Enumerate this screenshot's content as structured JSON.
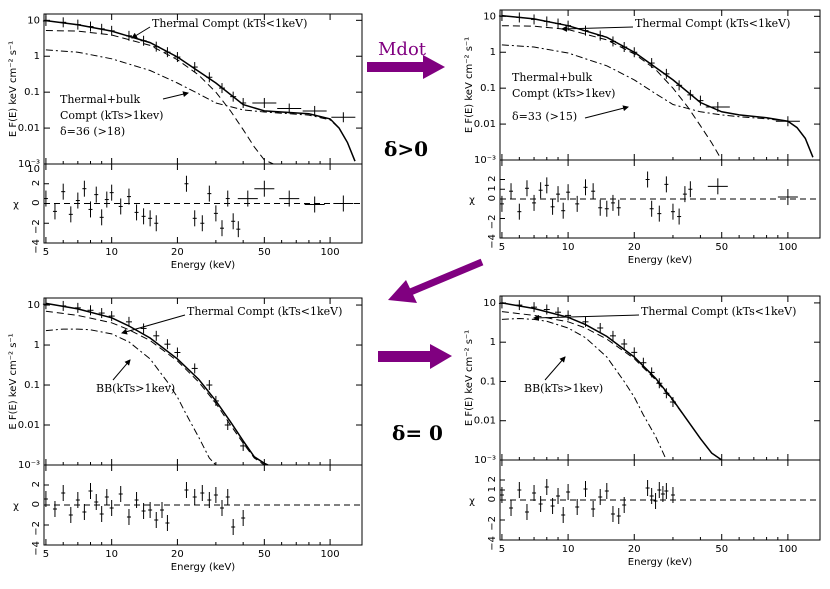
{
  "figure": {
    "mdot_label": "Mdot",
    "delta_pos_label": "δ>0",
    "delta_zero_label": "δ= 0",
    "arrow_color": "#800080"
  },
  "chart_data": [
    {
      "id": "tl",
      "type": "line",
      "title": "",
      "xlabel": "Energy (keV)",
      "ylabel": "E F(E) keV cm⁻² s⁻¹",
      "resid_label": "χ",
      "x_scale": "log",
      "xlim": [
        4.9,
        140
      ],
      "ylim": [
        0.001,
        15
      ],
      "resid_lim": [
        -4,
        4
      ],
      "x_ticks": [
        5,
        10,
        20,
        50,
        100
      ],
      "y_ticks": [
        {
          "v": 10,
          "t": "10"
        },
        {
          "v": 1,
          "t": "1"
        },
        {
          "v": 0.1,
          "t": "0.1"
        },
        {
          "v": 0.01,
          "t": "0.01"
        },
        {
          "v": 0.001,
          "t": "10⁻³"
        }
      ],
      "resid_ticks": [
        {
          "v": 2,
          "t": "2"
        },
        {
          "v": 0,
          "t": "0"
        },
        {
          "v": -2,
          "t": "−2"
        },
        {
          "v": -4,
          "t": "−4"
        }
      ],
      "resid_top_label": "10",
      "labels": [
        "Thermal Compt (kTs<1keV)",
        "Thermal+bulk",
        "Compt (kTs>1kev)",
        "δ=36 (>18)"
      ],
      "series": [
        {
          "name": "Total model",
          "style": "solid",
          "x": [
            5,
            7,
            10,
            15,
            20,
            30,
            40,
            50,
            60,
            80,
            100,
            110,
            120,
            130
          ],
          "values": [
            9.8,
            7.5,
            5.0,
            2.4,
            0.95,
            0.18,
            0.045,
            0.03,
            0.028,
            0.025,
            0.018,
            0.01,
            0.004,
            0.0012
          ]
        },
        {
          "name": "Thermal Compt (kTs<1keV)",
          "style": "dashed",
          "x": [
            5,
            7,
            10,
            15,
            20,
            25,
            30,
            35,
            40,
            45,
            50,
            55
          ],
          "values": [
            5.2,
            5.0,
            3.9,
            2.0,
            0.8,
            0.3,
            0.1,
            0.03,
            0.009,
            0.003,
            0.0013,
            0.001
          ]
        },
        {
          "name": "Thermal+bulk Compt (kTs>1kev)",
          "style": "dashdot",
          "x": [
            5,
            7,
            10,
            15,
            20,
            25,
            30,
            40,
            50,
            60,
            80,
            100,
            110,
            120,
            130
          ],
          "values": [
            1.5,
            1.3,
            0.85,
            0.4,
            0.18,
            0.09,
            0.05,
            0.032,
            0.028,
            0.026,
            0.023,
            0.017,
            0.01,
            0.004,
            0.0012
          ]
        }
      ],
      "data_x": [
        5,
        6,
        7,
        8,
        9,
        10,
        12,
        14,
        16,
        18,
        20,
        24,
        28,
        32,
        36,
        40,
        50,
        65,
        85,
        115
      ],
      "data_y": [
        9.6,
        8.8,
        7.6,
        6.7,
        5.8,
        5.1,
        3.7,
        2.7,
        1.85,
        1.3,
        0.95,
        0.5,
        0.26,
        0.13,
        0.075,
        0.05,
        0.05,
        0.035,
        0.03,
        0.02
      ],
      "resid_x": [
        5,
        5.5,
        6,
        6.5,
        7,
        7.5,
        8,
        8.5,
        9,
        9.5,
        10,
        11,
        12,
        13,
        14,
        15,
        16,
        22,
        24,
        26,
        28,
        30,
        32,
        34,
        36,
        38,
        42,
        50,
        65,
        85,
        115
      ],
      "resid_y": [
        0.5,
        -0.8,
        1.2,
        -1.1,
        0.3,
        1.5,
        -0.6,
        0.9,
        -1.4,
        0.4,
        1.1,
        -0.3,
        0.7,
        -0.9,
        -1.3,
        -1.5,
        -2.0,
        2.0,
        -1.5,
        -2.0,
        1.0,
        -1.0,
        -2.5,
        0.5,
        -1.8,
        -2.6,
        0.5,
        1.5,
        0.5,
        -0.1,
        0.0
      ]
    },
    {
      "id": "tr",
      "type": "line",
      "title": "",
      "xlabel": "Energy (keV)",
      "ylabel": "E F(E) keV cm⁻² s⁻¹",
      "resid_label": "χ",
      "x_scale": "log",
      "xlim": [
        4.9,
        140
      ],
      "ylim": [
        0.001,
        15
      ],
      "resid_lim": [
        -4,
        4
      ],
      "x_ticks": [
        5,
        10,
        20,
        50,
        100
      ],
      "y_ticks": [
        {
          "v": 10,
          "t": "10"
        },
        {
          "v": 1,
          "t": "1"
        },
        {
          "v": 0.1,
          "t": "0.1"
        },
        {
          "v": 0.01,
          "t": "0.01"
        },
        {
          "v": 0.001,
          "t": "10⁻³"
        }
      ],
      "resid_ticks": [
        {
          "v": 2,
          "t": "2"
        },
        {
          "v": 1,
          "t": "1"
        },
        {
          "v": 0,
          "t": "0"
        },
        {
          "v": -2,
          "t": "−2"
        },
        {
          "v": -4,
          "t": "−4"
        }
      ],
      "resid_top_label": "",
      "labels": [
        "Thermal Compt (kTs<1keV)",
        "Thermal+bulk",
        "Compt (kTs>1kev)",
        "δ=33 (>15)"
      ],
      "series": [
        {
          "name": "Total model",
          "style": "solid",
          "x": [
            5,
            7,
            10,
            15,
            20,
            30,
            40,
            50,
            60,
            80,
            100,
            110,
            120,
            130
          ],
          "values": [
            10.5,
            8.5,
            5.5,
            2.6,
            1.0,
            0.17,
            0.04,
            0.022,
            0.018,
            0.015,
            0.012,
            0.008,
            0.004,
            0.0012
          ]
        },
        {
          "name": "Thermal Compt (kTs<1keV)",
          "style": "dashed",
          "x": [
            5,
            7,
            10,
            15,
            20,
            25,
            30,
            35,
            40,
            45,
            50
          ],
          "values": [
            5.5,
            5.3,
            4.3,
            2.2,
            0.9,
            0.33,
            0.1,
            0.03,
            0.009,
            0.003,
            0.001
          ]
        },
        {
          "name": "Thermal+bulk Compt (kTs>1kev)",
          "style": "dashdot",
          "x": [
            5,
            7,
            10,
            15,
            20,
            25,
            30,
            40,
            50,
            60,
            80,
            100,
            110,
            120,
            130
          ],
          "values": [
            1.6,
            1.4,
            0.95,
            0.42,
            0.17,
            0.07,
            0.035,
            0.022,
            0.018,
            0.016,
            0.014,
            0.012,
            0.008,
            0.004,
            0.0012
          ]
        }
      ],
      "data_x": [
        5,
        6,
        7,
        8,
        9,
        10,
        12,
        14,
        16,
        18,
        20,
        24,
        28,
        32,
        36,
        40,
        48,
        100
      ],
      "data_y": [
        10.2,
        9.3,
        8.2,
        7.2,
        6.3,
        5.5,
        4.0,
        2.9,
        2.0,
        1.4,
        1.0,
        0.5,
        0.25,
        0.12,
        0.065,
        0.045,
        0.03,
        0.012
      ],
      "resid_x": [
        5,
        5.5,
        6,
        6.5,
        7,
        7.5,
        8,
        8.5,
        9,
        9.5,
        10,
        11,
        12,
        13,
        14,
        15,
        16,
        17,
        23,
        24,
        26,
        28,
        30,
        32,
        34,
        36,
        48,
        100
      ],
      "resid_y": [
        -0.5,
        0.8,
        -1.3,
        1.1,
        -0.4,
        0.9,
        1.4,
        -0.8,
        0.5,
        -1.2,
        0.7,
        -0.5,
        1.2,
        0.8,
        -0.9,
        -1.0,
        -0.4,
        -0.9,
        2.0,
        -1.0,
        -1.5,
        1.5,
        -1.3,
        -1.8,
        0.5,
        1.0,
        1.3,
        0.2
      ]
    },
    {
      "id": "bl",
      "type": "line",
      "title": "",
      "xlabel": "Energy (keV)",
      "ylabel": "E F(E) keV cm⁻² s⁻¹",
      "resid_label": "χ",
      "x_scale": "log",
      "xlim": [
        4.9,
        140
      ],
      "ylim": [
        0.001,
        15
      ],
      "resid_lim": [
        -4,
        4
      ],
      "x_ticks": [
        5,
        10,
        20,
        50,
        100
      ],
      "y_ticks": [
        {
          "v": 10,
          "t": "10"
        },
        {
          "v": 1,
          "t": "1"
        },
        {
          "v": 0.1,
          "t": "0.1"
        },
        {
          "v": 0.01,
          "t": "0.01"
        },
        {
          "v": 0.001,
          "t": "10⁻³"
        }
      ],
      "resid_ticks": [
        {
          "v": 2,
          "t": "2"
        },
        {
          "v": 0,
          "t": "0"
        },
        {
          "v": -2,
          "t": "−2"
        },
        {
          "v": -4,
          "t": "−4"
        }
      ],
      "resid_top_label": "",
      "labels": [
        "Thermal Compt (kTs<1keV)",
        "BB(kTs>1kev)"
      ],
      "series": [
        {
          "name": "Total model",
          "style": "solid",
          "x": [
            5,
            7,
            10,
            12,
            15,
            20,
            25,
            30,
            35,
            40,
            45,
            50,
            52
          ],
          "values": [
            11.0,
            8.0,
            4.8,
            3.0,
            1.5,
            0.45,
            0.14,
            0.04,
            0.012,
            0.004,
            0.0016,
            0.0011,
            0.001
          ]
        },
        {
          "name": "Thermal Compt (kTs<1keV)",
          "style": "dashed",
          "x": [
            5,
            7,
            10,
            12,
            15,
            20,
            25,
            30,
            35,
            40,
            45,
            50
          ],
          "values": [
            7.0,
            5.5,
            3.6,
            2.4,
            1.3,
            0.4,
            0.12,
            0.035,
            0.01,
            0.0035,
            0.0015,
            0.001
          ]
        },
        {
          "name": "BB(kTs>1kev)",
          "style": "dashdot",
          "x": [
            5,
            6,
            7,
            8,
            10,
            12,
            15,
            18,
            20,
            22,
            25,
            28,
            30
          ],
          "values": [
            2.3,
            2.5,
            2.5,
            2.4,
            1.9,
            1.2,
            0.45,
            0.12,
            0.05,
            0.018,
            0.005,
            0.0015,
            0.001
          ]
        }
      ],
      "data_x": [
        5,
        6,
        7,
        8,
        9,
        10,
        12,
        14,
        16,
        18,
        20,
        24,
        28,
        30,
        34,
        40
      ],
      "data_y": [
        10.5,
        9.5,
        8.5,
        7.4,
        6.3,
        5.3,
        3.8,
        2.6,
        1.7,
        1.05,
        0.65,
        0.26,
        0.1,
        0.04,
        0.01,
        0.003
      ],
      "resid_x": [
        5,
        5.5,
        6,
        6.5,
        7,
        7.5,
        8,
        8.5,
        9,
        9.5,
        10,
        11,
        12,
        13,
        14,
        15,
        16,
        17,
        18,
        22,
        24,
        26,
        28,
        30,
        32,
        34,
        36,
        40
      ],
      "resid_y": [
        0.6,
        -0.4,
        1.2,
        -1.0,
        0.5,
        -0.7,
        1.4,
        0.3,
        -0.9,
        0.8,
        -0.3,
        1.1,
        -1.2,
        0.5,
        -0.6,
        -0.5,
        -1.5,
        -0.5,
        -1.8,
        1.5,
        0.8,
        1.2,
        0.5,
        1.0,
        -0.3,
        0.8,
        -2.2,
        -1.3
      ]
    },
    {
      "id": "br",
      "type": "line",
      "title": "",
      "xlabel": "Energy (keV)",
      "ylabel": "E F(E) keV cm⁻² s⁻¹",
      "resid_label": "χ",
      "x_scale": "log",
      "xlim": [
        4.9,
        140
      ],
      "ylim": [
        0.001,
        15
      ],
      "resid_lim": [
        -4,
        4
      ],
      "x_ticks": [
        5,
        10,
        20,
        50,
        100
      ],
      "y_ticks": [
        {
          "v": 10,
          "t": "10"
        },
        {
          "v": 1,
          "t": "1"
        },
        {
          "v": 0.1,
          "t": "0.1"
        },
        {
          "v": 0.01,
          "t": "0.01"
        },
        {
          "v": 0.001,
          "t": "10⁻³"
        }
      ],
      "resid_ticks": [
        {
          "v": 2,
          "t": "2"
        },
        {
          "v": 1,
          "t": "1"
        },
        {
          "v": 0,
          "t": "0"
        },
        {
          "v": -2,
          "t": "−2"
        },
        {
          "v": -4,
          "t": "−4"
        }
      ],
      "resid_top_label": "",
      "labels": [
        "Thermal Compt (kTs<1keV)",
        "BB(kTs>1kev)"
      ],
      "series": [
        {
          "name": "Total model",
          "style": "solid",
          "x": [
            5,
            7,
            10,
            12,
            15,
            20,
            25,
            30,
            35,
            40,
            45,
            50
          ],
          "values": [
            10.0,
            7.2,
            4.3,
            2.8,
            1.4,
            0.42,
            0.12,
            0.034,
            0.01,
            0.0035,
            0.0015,
            0.001
          ]
        },
        {
          "name": "Thermal Compt (kTs<1keV)",
          "style": "dashed",
          "x": [
            5,
            7,
            10,
            12,
            15,
            20,
            25,
            30,
            35,
            40,
            45,
            50
          ],
          "values": [
            6.0,
            4.8,
            3.3,
            2.3,
            1.2,
            0.38,
            0.11,
            0.032,
            0.01,
            0.0035,
            0.0015,
            0.001
          ]
        },
        {
          "name": "BB(kTs>1kev)",
          "style": "dashdot",
          "x": [
            5,
            6,
            7,
            8,
            10,
            12,
            15,
            18,
            20,
            22,
            25,
            28
          ],
          "values": [
            3.8,
            4.0,
            3.8,
            3.4,
            2.3,
            1.3,
            0.42,
            0.1,
            0.04,
            0.014,
            0.004,
            0.001
          ]
        }
      ],
      "data_x": [
        5,
        6,
        7,
        8,
        9,
        10,
        12,
        14,
        16,
        18,
        20,
        22,
        24,
        26,
        28,
        30
      ],
      "data_y": [
        9.7,
        8.8,
        7.8,
        6.8,
        5.8,
        4.8,
        3.3,
        2.3,
        1.45,
        0.9,
        0.55,
        0.3,
        0.17,
        0.09,
        0.05,
        0.03
      ],
      "resid_x": [
        5,
        5.5,
        6,
        6.5,
        7,
        7.5,
        8,
        8.5,
        9,
        9.5,
        10,
        11,
        12,
        13,
        14,
        15,
        16,
        17,
        18,
        23,
        24,
        25,
        26,
        27,
        28,
        30
      ],
      "resid_y": [
        0.5,
        -0.8,
        1.0,
        -1.2,
        0.7,
        -0.4,
        1.3,
        -0.6,
        0.4,
        -1.5,
        0.8,
        -0.7,
        1.1,
        -0.9,
        0.3,
        0.9,
        -1.4,
        -1.6,
        -0.5,
        1.2,
        0.4,
        -0.1,
        1.0,
        0.6,
        0.9,
        0.5
      ]
    }
  ]
}
